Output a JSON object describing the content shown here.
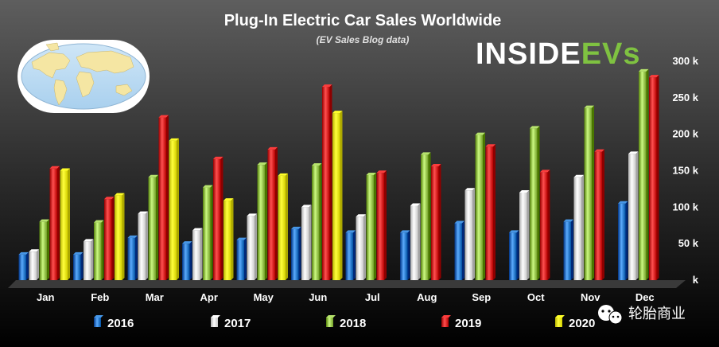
{
  "chart_data": {
    "type": "bar",
    "title": "Plug-In Electric Car Sales Worldwide",
    "subtitle": "(EV Sales Blog data)",
    "categories": [
      "Jan",
      "Feb",
      "Mar",
      "Apr",
      "May",
      "Jun",
      "Jul",
      "Aug",
      "Sep",
      "Oct",
      "Nov",
      "Dec"
    ],
    "series": [
      {
        "name": "2016",
        "color": "#1f6fc0",
        "values": [
          35,
          35,
          58,
          50,
          55,
          70,
          65,
          65,
          78,
          65,
          80,
          105
        ]
      },
      {
        "name": "2017",
        "color": "#e8e8e8",
        "values": [
          39,
          53,
          91,
          68,
          88,
          100,
          87,
          102,
          123,
          120,
          141,
          173
        ]
      },
      {
        "name": "2018",
        "color": "#8fbc45",
        "values": [
          80,
          79,
          141,
          127,
          158,
          157,
          144,
          172,
          199,
          208,
          236,
          286
        ]
      },
      {
        "name": "2019",
        "color": "#d41414",
        "values": [
          153,
          111,
          223,
          166,
          179,
          265,
          147,
          156,
          183,
          148,
          176,
          278
        ]
      },
      {
        "name": "2020",
        "color": "#f2ee00",
        "values": [
          150,
          116,
          191,
          109,
          143,
          229,
          null,
          null,
          null,
          null,
          null,
          null
        ]
      }
    ],
    "ylim": [
      0,
      300
    ],
    "yticks": [
      0,
      50,
      100,
      150,
      200,
      250,
      300
    ],
    "ytick_labels": [
      "k",
      "50 k",
      "100 k",
      "150 k",
      "200 k",
      "250 k",
      "300 k"
    ],
    "grid": false,
    "legend_position": "bottom"
  },
  "logo": {
    "prefix": "INSIDE",
    "suffix": "EVs",
    "icon": "world-map-icon"
  },
  "watermark": {
    "text": "轮胎商业",
    "icon": "wechat-icon"
  },
  "colors": {
    "background_top": "#5a5a5a",
    "background_bottom": "#000000",
    "accent": "#7fc241"
  }
}
